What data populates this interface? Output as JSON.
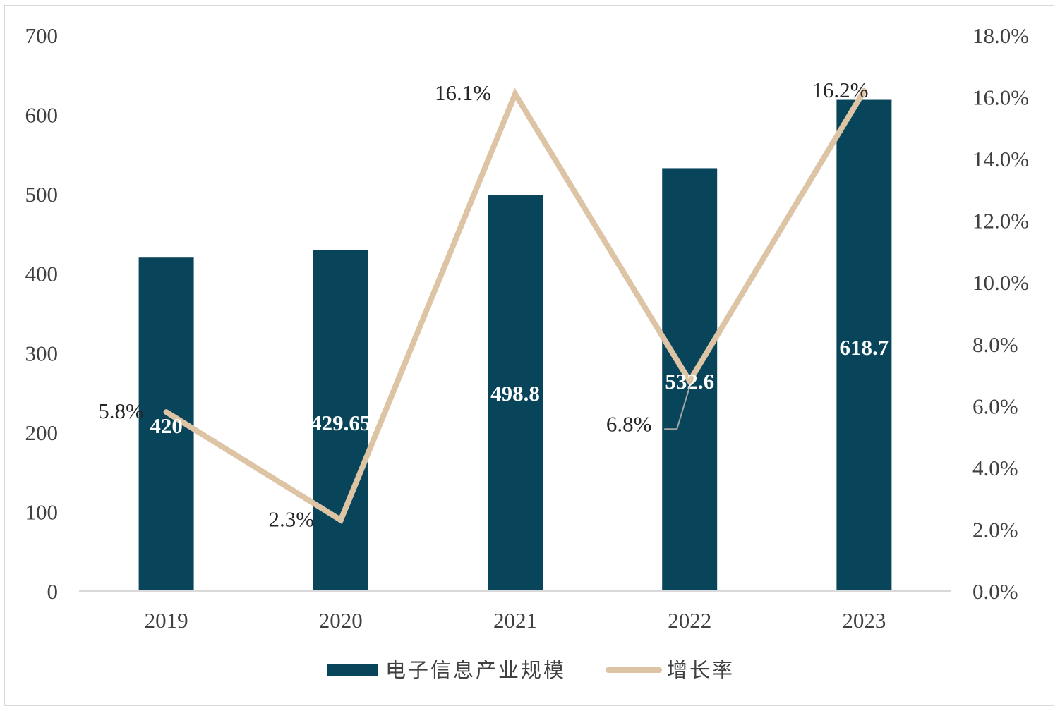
{
  "chart_data": {
    "type": "bar",
    "categories": [
      "2019",
      "2020",
      "2021",
      "2022",
      "2023"
    ],
    "series": [
      {
        "name": "电子信息产业规模",
        "type": "bar",
        "axis": "left",
        "color": "#08455a",
        "values": [
          420,
          429.65,
          498.8,
          532.6,
          618.7
        ],
        "labels": [
          "420",
          "429.65",
          "498.8",
          "532.6",
          "618.7"
        ]
      },
      {
        "name": "增长率",
        "type": "line",
        "axis": "right",
        "color": "#dcc4a5",
        "values": [
          5.8,
          2.3,
          16.1,
          6.8,
          16.2
        ],
        "labels": [
          "5.8%",
          "2.3%",
          "16.1%",
          "6.8%",
          "16.2%"
        ]
      }
    ],
    "y_left": {
      "ylim": [
        0,
        700
      ],
      "ticks": [
        "0",
        "100",
        "200",
        "300",
        "400",
        "500",
        "600",
        "700"
      ]
    },
    "y_right": {
      "ylim": [
        0,
        18
      ],
      "ticks": [
        "0.0%",
        "2.0%",
        "4.0%",
        "6.0%",
        "8.0%",
        "10.0%",
        "12.0%",
        "14.0%",
        "16.0%",
        "18.0%"
      ]
    },
    "title": "",
    "xlabel": "",
    "ylabel": "",
    "grid": false,
    "legend_position": "bottom-center"
  }
}
